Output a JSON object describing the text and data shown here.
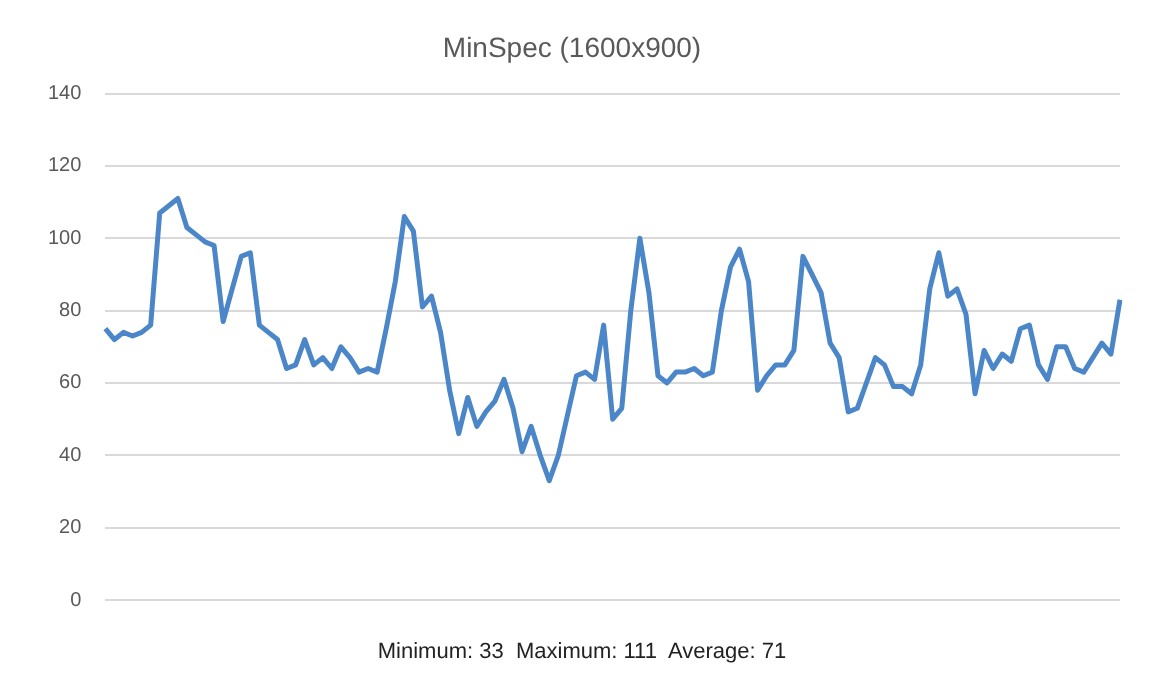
{
  "chart_data": {
    "type": "line",
    "title": "MinSpec (1600x900)",
    "categories": [
      null,
      null,
      null,
      null,
      null,
      null,
      null,
      null,
      null,
      null,
      null,
      null,
      null,
      null,
      null,
      null,
      null,
      null,
      null,
      null,
      null,
      null,
      null,
      null,
      null,
      null,
      null,
      null,
      null,
      null,
      null,
      null,
      null,
      null,
      null,
      null,
      null,
      null,
      null,
      null,
      null,
      null,
      null,
      null,
      null,
      null,
      null,
      null,
      null,
      null,
      null,
      null,
      null,
      null,
      null,
      null,
      null,
      null,
      null,
      null,
      null,
      null,
      null,
      null,
      null,
      null,
      null,
      null,
      null,
      null,
      null,
      null,
      null,
      null,
      null,
      null,
      null,
      null,
      null,
      null,
      null,
      null,
      null,
      null,
      null,
      null,
      null,
      null,
      null,
      null,
      null,
      null,
      null,
      null,
      null,
      null,
      null,
      null,
      null,
      null,
      null,
      null,
      null,
      null,
      null,
      null,
      null,
      null,
      null,
      null,
      null,
      null,
      null
    ],
    "series": [
      {
        "color": "#4a86c8",
        "values": [
          75,
          72,
          74,
          73,
          74,
          76,
          107,
          109,
          111,
          103,
          101,
          99,
          98,
          77,
          86,
          95,
          96,
          76,
          74,
          72,
          64,
          65,
          72,
          65,
          67,
          64,
          70,
          67,
          63,
          64,
          63,
          75,
          88,
          106,
          102,
          81,
          84,
          74,
          58,
          46,
          56,
          48,
          52,
          55,
          61,
          53,
          41,
          48,
          40,
          33,
          40,
          51,
          62,
          63,
          61,
          76,
          50,
          53,
          80,
          100,
          85,
          62,
          60,
          63,
          63,
          64,
          62,
          63,
          80,
          92,
          97,
          88,
          58,
          62,
          65,
          65,
          69,
          95,
          90,
          85,
          71,
          67,
          52,
          53,
          60,
          67,
          65,
          59,
          59,
          57,
          65,
          86,
          96,
          84,
          86,
          79,
          57,
          69,
          64,
          68,
          66,
          75,
          76,
          65,
          61,
          70,
          70,
          64,
          63,
          67,
          71,
          68,
          83
        ]
      }
    ],
    "ylim": [
      0,
      140
    ],
    "yticks": [
      0,
      20,
      40,
      60,
      80,
      100,
      120,
      140
    ],
    "grid": "y",
    "legend": false,
    "marker": "none",
    "line_style": "solid",
    "annotations": [
      "Minimum: 33  Maximum: 111  Average: 71"
    ]
  }
}
